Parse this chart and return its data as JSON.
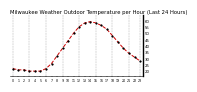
{
  "title": "Milwaukee Weather Outdoor Temperature per Hour (Last 24 Hours)",
  "hours": [
    0,
    1,
    2,
    3,
    4,
    5,
    6,
    7,
    8,
    9,
    10,
    11,
    12,
    13,
    14,
    15,
    16,
    17,
    18,
    19,
    20,
    21,
    22,
    23
  ],
  "temps": [
    22,
    21,
    21,
    20,
    20,
    20,
    22,
    26,
    32,
    38,
    44,
    50,
    55,
    58,
    59,
    58,
    56,
    53,
    48,
    43,
    38,
    34,
    31,
    28
  ],
  "line_color": "#cc0000",
  "marker_color": "#000000",
  "bg_color": "#ffffff",
  "grid_color": "#999999",
  "ylim_min": 16,
  "ylim_max": 64,
  "ytick_vals": [
    20,
    25,
    30,
    35,
    40,
    45,
    50,
    55,
    60
  ],
  "ytick_labels": [
    "20",
    "25",
    "30",
    "35",
    "40",
    "45",
    "50",
    "55",
    "60"
  ],
  "vgrid_hours": [
    0,
    3,
    6,
    9,
    12,
    15,
    18,
    21,
    23
  ],
  "title_fontsize": 3.8,
  "tick_fontsize": 2.8,
  "line_width": 0.7,
  "marker_size": 1.2
}
